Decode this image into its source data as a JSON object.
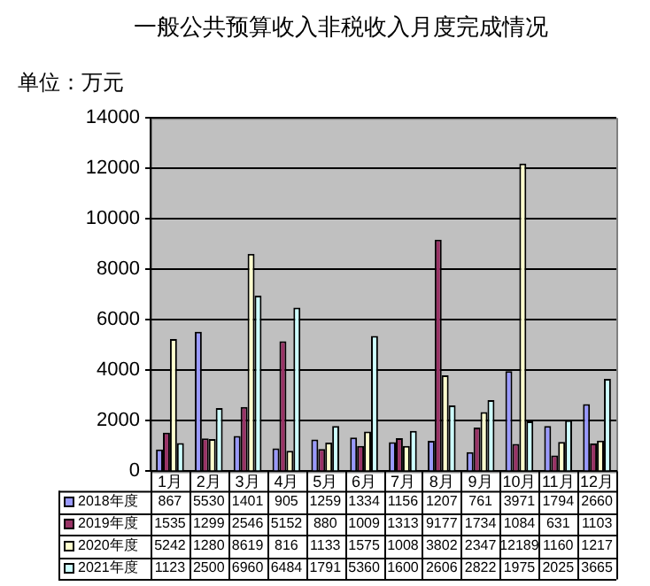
{
  "chart_data": {
    "type": "bar",
    "title": "一般公共预算收入非税收入月度完成情况",
    "ylabel": "单位：万元",
    "categories": [
      "1月",
      "2月",
      "3月",
      "4月",
      "5月",
      "6月",
      "7月",
      "8月",
      "9月",
      "10月",
      "11月",
      "12月"
    ],
    "series": [
      {
        "name": "2018年度",
        "color": "#9999ff",
        "values": [
          867,
          5530,
          1401,
          905,
          1259,
          1334,
          1156,
          1207,
          761,
          3971,
          1794,
          2660
        ]
      },
      {
        "name": "2019年度",
        "color": "#993366",
        "values": [
          1535,
          1299,
          2546,
          5152,
          880,
          1009,
          1313,
          9177,
          1734,
          1084,
          631,
          1103
        ]
      },
      {
        "name": "2020年度",
        "color": "#ffffcc",
        "values": [
          5242,
          1280,
          8619,
          816,
          1133,
          1575,
          1008,
          3802,
          2347,
          12189,
          1160,
          1217
        ]
      },
      {
        "name": "2021年度",
        "color": "#ccffff",
        "values": [
          1123,
          2500,
          6960,
          6484,
          1791,
          5360,
          1600,
          2606,
          2822,
          1975,
          2025,
          3665
        ]
      }
    ],
    "ylim": [
      0,
      14000
    ],
    "yticks": [
      0,
      2000,
      4000,
      6000,
      8000,
      10000,
      12000,
      14000
    ],
    "grid": "y",
    "legend": "bottom",
    "data_labels": true
  }
}
